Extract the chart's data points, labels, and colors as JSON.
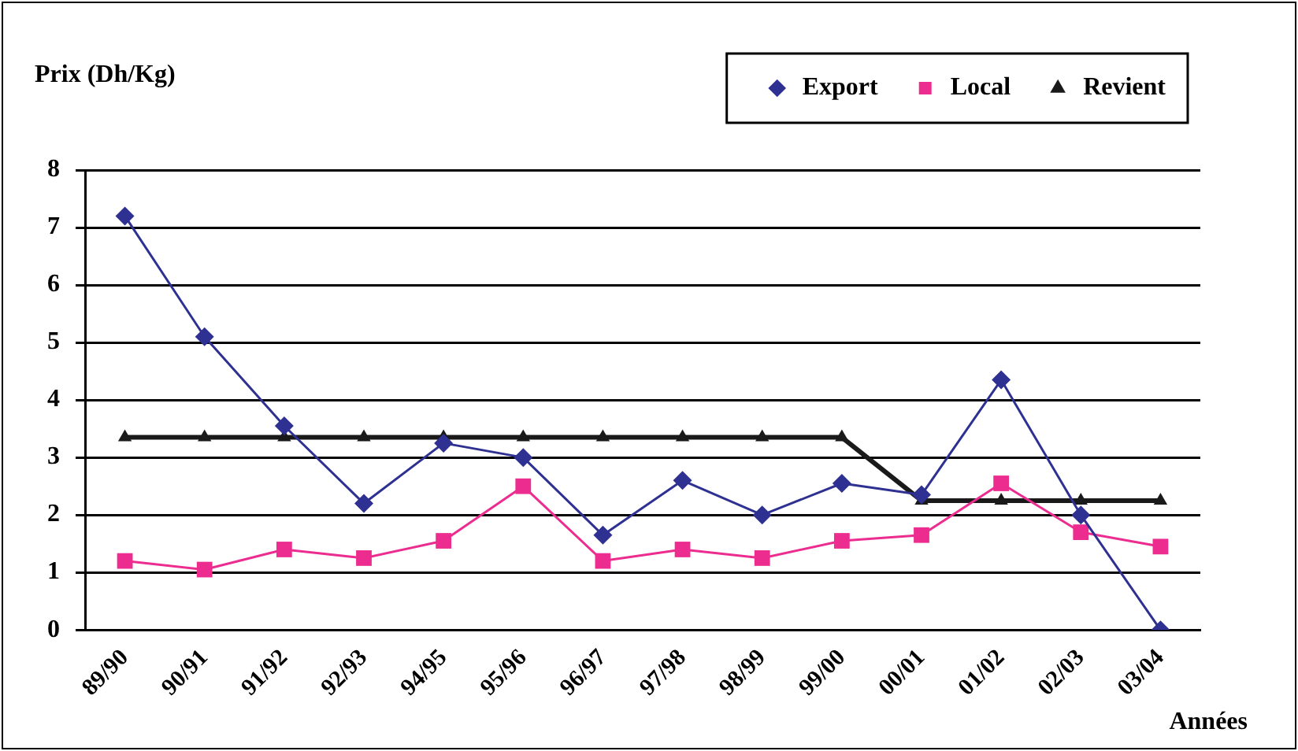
{
  "chart_data": {
    "type": "line",
    "ylabel": "Prix (Dh/Kg)",
    "xlabel": "Années",
    "categories": [
      "89/90",
      "90/91",
      "91/92",
      "92/93",
      "94/95",
      "95/96",
      "96/97",
      "97/98",
      "98/99",
      "99/00",
      "00/01",
      "01/02",
      "02/03",
      "03/04"
    ],
    "series": [
      {
        "name": "Export",
        "color": "#2e3192",
        "marker": "diamond",
        "values": [
          7.2,
          5.1,
          3.55,
          2.2,
          3.25,
          3.0,
          1.65,
          2.6,
          2.0,
          2.55,
          2.35,
          4.35,
          2.0,
          0
        ]
      },
      {
        "name": "Local",
        "color": "#ec2d8f",
        "marker": "square",
        "values": [
          1.2,
          1.05,
          1.4,
          1.25,
          1.55,
          2.5,
          1.2,
          1.4,
          1.25,
          1.55,
          1.65,
          2.55,
          1.7,
          1.45
        ]
      },
      {
        "name": "Revient",
        "color": "#1a1a1a",
        "marker": "triangle",
        "values": [
          3.35,
          3.35,
          3.35,
          3.35,
          3.35,
          3.35,
          3.35,
          3.35,
          3.35,
          3.35,
          2.25,
          2.25,
          2.25,
          2.25
        ]
      }
    ],
    "ylim": [
      0,
      8
    ],
    "yticks": [
      0,
      1,
      2,
      3,
      4,
      5,
      6,
      7,
      8
    ],
    "grid": "y",
    "legend": "top right"
  }
}
